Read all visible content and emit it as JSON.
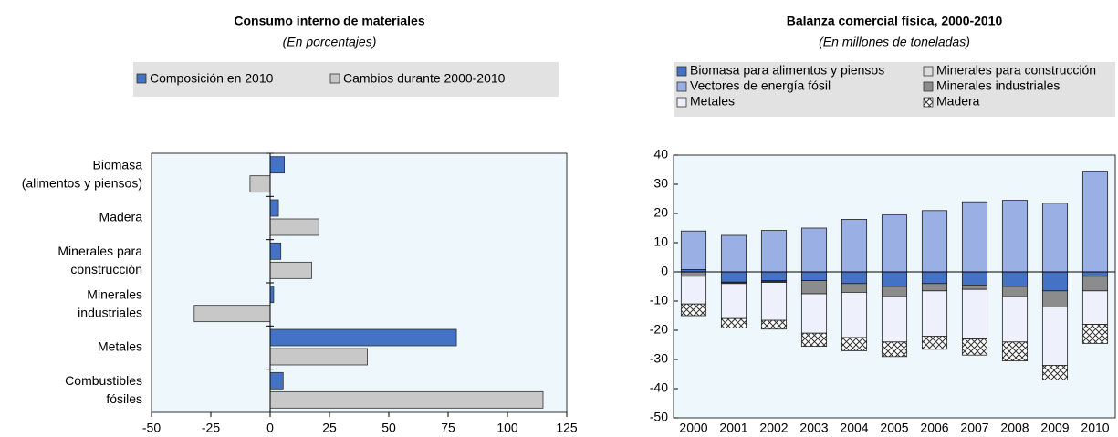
{
  "chart_data": [
    {
      "type": "hbar",
      "title": "Consumo interno de materiales",
      "subtitle": "(En porcentajes)",
      "categories": [
        [
          "Biomasa",
          "(alimentos y piensos)"
        ],
        [
          "Madera"
        ],
        [
          "Minerales para",
          "construcción"
        ],
        [
          "Minerales",
          "industriales"
        ],
        [
          "Metales"
        ],
        [
          "Combustibles",
          "fósiles"
        ]
      ],
      "series": [
        {
          "name": "Composición en 2010",
          "color": "#4472c4",
          "values": [
            6,
            3.5,
            4.5,
            1.5,
            78.5,
            5.5
          ]
        },
        {
          "name": "Cambios durante 2000-2010",
          "color": "#c8c8c8",
          "values": [
            -8.5,
            20.5,
            17.5,
            -32,
            41,
            115
          ]
        }
      ],
      "xlim": [
        -50,
        125
      ],
      "xticks": [
        -50,
        -25,
        0,
        25,
        50,
        75,
        100,
        125
      ]
    },
    {
      "type": "stacked-bar",
      "title": "Balanza comercial física, 2000-2010",
      "subtitle": "(En millones de toneladas)",
      "categories": [
        "2000",
        "2001",
        "2002",
        "2003",
        "2004",
        "2005",
        "2006",
        "2007",
        "2008",
        "2009",
        "2010"
      ],
      "series": [
        {
          "name": "Biomasa para alimentos y piensos",
          "color": "#4472c4",
          "values": [
            0.8,
            -3.5,
            -3,
            -3,
            -4,
            -5,
            -4,
            -4.5,
            -5,
            -6.5,
            -1.5
          ]
        },
        {
          "name": "Vectores de energía fósil",
          "color": "#9aafe3",
          "values": [
            13.2,
            12.5,
            14.2,
            15,
            18,
            19.5,
            21,
            24,
            24.5,
            23.5,
            34.5
          ]
        },
        {
          "name": "Metales",
          "color": "#eef1fb",
          "values": [
            -9.5,
            -12,
            -13,
            -13.5,
            -15.5,
            -15.5,
            -15.5,
            -17,
            -15.5,
            -20,
            -11.5
          ]
        },
        {
          "name": "Minerales para construcción",
          "color": "#dcdcdc",
          "values": [
            0,
            -0.2,
            -0.3,
            0,
            0,
            0,
            0,
            0,
            0,
            0,
            0
          ]
        },
        {
          "name": "Minerales industriales",
          "color": "#8c8c8c",
          "values": [
            -1.5,
            -0.3,
            -0.3,
            -4.5,
            -3,
            -3.5,
            -2.5,
            -1.5,
            -3.5,
            -5.5,
            -5
          ]
        },
        {
          "name": "Madera",
          "color": "#ffffff",
          "pattern": "crosshatch",
          "values": [
            -4,
            -3.2,
            -3,
            -4.5,
            -4.5,
            -5,
            -4.5,
            -5.5,
            -6.5,
            -5,
            -6.5
          ]
        }
      ],
      "ylim": [
        -50,
        40
      ],
      "yticks": [
        -50,
        -40,
        -30,
        -20,
        -10,
        0,
        10,
        20,
        30,
        40
      ]
    }
  ]
}
